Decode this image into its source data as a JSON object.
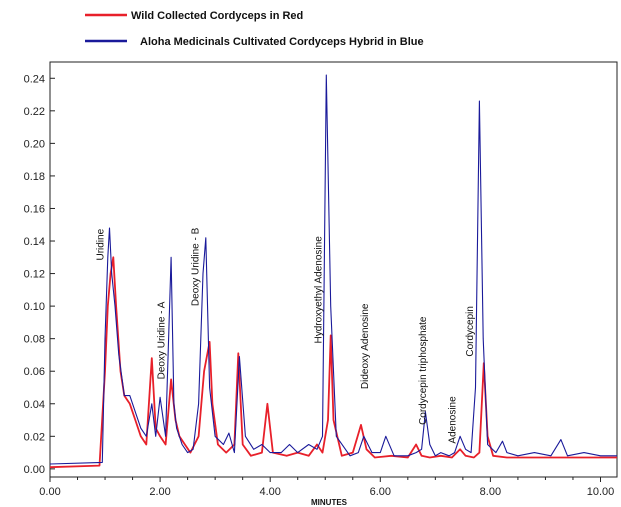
{
  "chart_data": {
    "type": "line",
    "title": "",
    "xlabel": "MINUTES",
    "ylabel": "",
    "xlim": [
      0,
      10.3
    ],
    "ylim": [
      -0.005,
      0.25
    ],
    "x_ticks": [
      0,
      2,
      4,
      6,
      8,
      10
    ],
    "x_tick_labels": [
      "0.00",
      "2.00",
      "4.00",
      "6.00",
      "8.00",
      "10.00"
    ],
    "y_ticks": [
      0,
      0.02,
      0.04,
      0.06,
      0.08,
      0.1,
      0.12,
      0.14,
      0.16,
      0.18,
      0.2,
      0.22,
      0.24
    ],
    "y_tick_labels": [
      "0.00",
      "0.02",
      "0.04",
      "0.06",
      "0.08",
      "0.10",
      "0.12",
      "0.14",
      "0.16",
      "0.18",
      "0.20",
      "0.22",
      "0.24"
    ],
    "grid": false,
    "legend_position": "top-left",
    "series": [
      {
        "name": "Wild Collected Cordyceps in Red",
        "color": "#e8202a",
        "x": [
          0.0,
          0.9,
          1.0,
          1.05,
          1.1,
          1.15,
          1.2,
          1.28,
          1.35,
          1.45,
          1.55,
          1.65,
          1.75,
          1.85,
          1.92,
          2.0,
          2.1,
          2.2,
          2.28,
          2.35,
          2.45,
          2.55,
          2.7,
          2.8,
          2.9,
          2.95,
          3.05,
          3.2,
          3.35,
          3.42,
          3.5,
          3.65,
          3.85,
          3.95,
          4.05,
          4.3,
          4.5,
          4.7,
          4.85,
          4.95,
          5.05,
          5.1,
          5.15,
          5.3,
          5.5,
          5.65,
          5.75,
          5.9,
          6.2,
          6.5,
          6.65,
          6.75,
          6.9,
          7.1,
          7.3,
          7.45,
          7.55,
          7.7,
          7.8,
          7.88,
          7.95,
          8.05,
          8.3,
          9.0,
          10.3
        ],
        "y": [
          0.001,
          0.002,
          0.06,
          0.1,
          0.12,
          0.13,
          0.1,
          0.06,
          0.045,
          0.04,
          0.03,
          0.02,
          0.015,
          0.068,
          0.025,
          0.02,
          0.015,
          0.055,
          0.03,
          0.02,
          0.015,
          0.01,
          0.02,
          0.06,
          0.078,
          0.04,
          0.015,
          0.01,
          0.015,
          0.071,
          0.015,
          0.008,
          0.01,
          0.04,
          0.01,
          0.008,
          0.01,
          0.008,
          0.015,
          0.01,
          0.03,
          0.082,
          0.03,
          0.008,
          0.01,
          0.027,
          0.012,
          0.007,
          0.008,
          0.007,
          0.015,
          0.008,
          0.007,
          0.008,
          0.007,
          0.012,
          0.008,
          0.007,
          0.01,
          0.065,
          0.02,
          0.008,
          0.007,
          0.007,
          0.007
        ]
      },
      {
        "name": "Aloha Medicinals Cultivated Cordyceps Hybrid in Blue",
        "color": "#1a1a9a",
        "x": [
          0.0,
          0.95,
          1.0,
          1.05,
          1.08,
          1.12,
          1.18,
          1.25,
          1.35,
          1.45,
          1.55,
          1.65,
          1.75,
          1.85,
          1.92,
          2.0,
          2.1,
          2.2,
          2.25,
          2.3,
          2.4,
          2.5,
          2.6,
          2.7,
          2.78,
          2.83,
          2.9,
          3.0,
          3.15,
          3.25,
          3.35,
          3.44,
          3.55,
          3.7,
          3.85,
          4.0,
          4.2,
          4.35,
          4.5,
          4.7,
          4.85,
          4.95,
          5.02,
          5.1,
          5.2,
          5.45,
          5.6,
          5.7,
          5.85,
          6.0,
          6.1,
          6.25,
          6.5,
          6.65,
          6.75,
          6.82,
          6.9,
          7.0,
          7.1,
          7.25,
          7.35,
          7.45,
          7.55,
          7.65,
          7.73,
          7.8,
          7.87,
          7.95,
          8.1,
          8.22,
          8.3,
          8.5,
          8.8,
          9.1,
          9.28,
          9.4,
          9.7,
          10.0,
          10.3
        ],
        "y": [
          0.003,
          0.004,
          0.08,
          0.13,
          0.148,
          0.12,
          0.1,
          0.07,
          0.045,
          0.045,
          0.035,
          0.025,
          0.02,
          0.04,
          0.02,
          0.044,
          0.02,
          0.13,
          0.04,
          0.025,
          0.015,
          0.01,
          0.012,
          0.04,
          0.12,
          0.142,
          0.05,
          0.02,
          0.015,
          0.022,
          0.01,
          0.069,
          0.02,
          0.012,
          0.015,
          0.01,
          0.01,
          0.015,
          0.01,
          0.015,
          0.012,
          0.02,
          0.242,
          0.1,
          0.02,
          0.008,
          0.01,
          0.02,
          0.01,
          0.01,
          0.02,
          0.008,
          0.008,
          0.01,
          0.012,
          0.035,
          0.015,
          0.008,
          0.01,
          0.008,
          0.01,
          0.02,
          0.012,
          0.01,
          0.05,
          0.226,
          0.08,
          0.015,
          0.01,
          0.017,
          0.01,
          0.008,
          0.01,
          0.008,
          0.018,
          0.008,
          0.01,
          0.008,
          0.008
        ]
      }
    ],
    "annotations": [
      {
        "text": "Uridine",
        "x": 0.97,
        "y": 0.128
      },
      {
        "text": "Deoxy Uridine - A",
        "x": 2.08,
        "y": 0.055
      },
      {
        "text": "Deoxy Uridine - B",
        "x": 2.7,
        "y": 0.1
      },
      {
        "text": "Hydroxyethyl Adenosine",
        "x": 4.93,
        "y": 0.077
      },
      {
        "text": "Dideoxy Adenosine",
        "x": 5.78,
        "y": 0.049
      },
      {
        "text": "Cordycepin triphosphate",
        "x": 6.83,
        "y": 0.027
      },
      {
        "text": "Adenosine",
        "x": 7.37,
        "y": 0.0155
      },
      {
        "text": "Cordycepin",
        "x": 7.68,
        "y": 0.069
      }
    ]
  }
}
